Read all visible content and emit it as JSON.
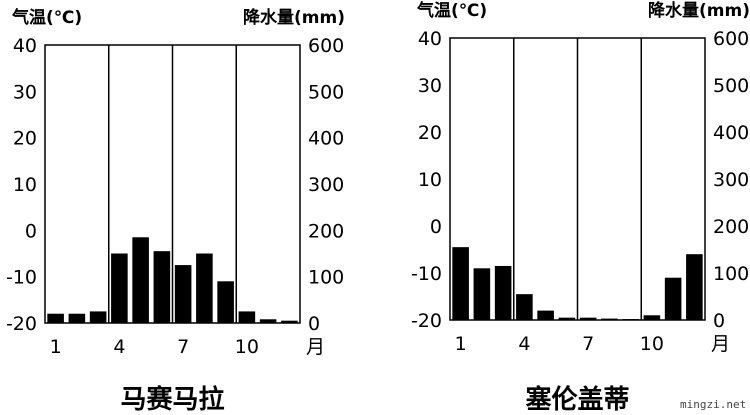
{
  "watermark": "mingzi.net",
  "chart_data": [
    {
      "type": "bar",
      "title": "马赛马拉",
      "y_left_label": "气温(℃)",
      "y_right_label": "降水量(mm)",
      "x_unit": "月",
      "months": [
        1,
        2,
        3,
        4,
        5,
        6,
        7,
        8,
        9,
        10,
        11,
        12
      ],
      "x_tick_labels": [
        "1",
        "4",
        "7",
        "10"
      ],
      "x_tick_months": [
        1,
        4,
        7,
        10
      ],
      "temp_ticks": [
        "40",
        "30",
        "20",
        "10",
        "0",
        "-10",
        "-20"
      ],
      "precip_ticks": [
        "600",
        "500",
        "400",
        "300",
        "200",
        "100",
        "0"
      ],
      "temp_range": [
        -20,
        40
      ],
      "precip_range": [
        0,
        600
      ],
      "precipitation": [
        20,
        20,
        25,
        150,
        185,
        155,
        125,
        150,
        90,
        25,
        8,
        5
      ],
      "gridlines": "vertical at months 3.5, 6.5, 9.5; horizontal grid off",
      "bar_color": "#000000"
    },
    {
      "type": "bar",
      "title": "塞伦盖蒂",
      "y_left_label": "气温(℃)",
      "y_right_label": "降水量(mm)",
      "x_unit": "月",
      "months": [
        1,
        2,
        3,
        4,
        5,
        6,
        7,
        8,
        9,
        10,
        11,
        12
      ],
      "x_tick_labels": [
        "1",
        "4",
        "7",
        "10"
      ],
      "x_tick_months": [
        1,
        4,
        7,
        10
      ],
      "temp_ticks": [
        "40",
        "30",
        "20",
        "10",
        "0",
        "-10",
        "-20"
      ],
      "precip_ticks": [
        "600",
        "500",
        "400",
        "300",
        "200",
        "100",
        "0"
      ],
      "temp_range": [
        -20,
        40
      ],
      "precip_range": [
        0,
        600
      ],
      "precipitation": [
        155,
        110,
        115,
        55,
        20,
        5,
        5,
        3,
        2,
        10,
        90,
        140
      ],
      "gridlines": "vertical at months 3.5, 6.5, 9.5; horizontal grid off",
      "bar_color": "#000000"
    }
  ]
}
